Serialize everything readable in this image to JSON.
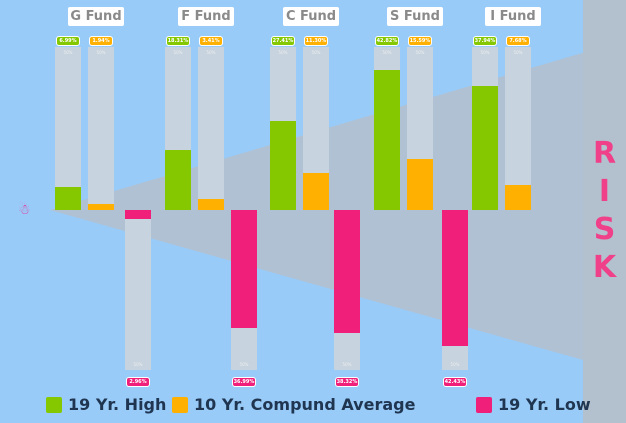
{
  "chart_data": {
    "type": "bar",
    "categories": [
      "G Fund",
      "F Fund",
      "C Fund",
      "S Fund",
      "I Fund"
    ],
    "series": [
      {
        "name": "19 Yr. High",
        "color": "#86c800",
        "values": [
          6.99,
          18.31,
          27.41,
          42.82,
          37.94
        ],
        "labels": [
          "6.99%",
          "18.31%",
          "27.41%",
          "42.82%",
          "37.94%"
        ]
      },
      {
        "name": "10 Yr. Compund Average",
        "color": "#ffb000",
        "values": [
          1.94,
          3.41,
          11.3,
          15.59,
          7.68
        ],
        "labels": [
          "1.94%",
          "3.41%",
          "11.30%",
          "15.59%",
          "7.68%"
        ]
      },
      {
        "name": "19 Yr. Low",
        "color": "#f0207a",
        "values": [
          null,
          -2.96,
          -36.99,
          -38.32,
          -42.43
        ],
        "labels": [
          "",
          "2.96%",
          "36.99%",
          "38.32%",
          "42.43%"
        ]
      }
    ],
    "bar_max_label": "50%",
    "ylim": [
      -50,
      50
    ],
    "legend_position": "bottom",
    "side_label": [
      "R",
      "I",
      "S",
      "K"
    ]
  }
}
